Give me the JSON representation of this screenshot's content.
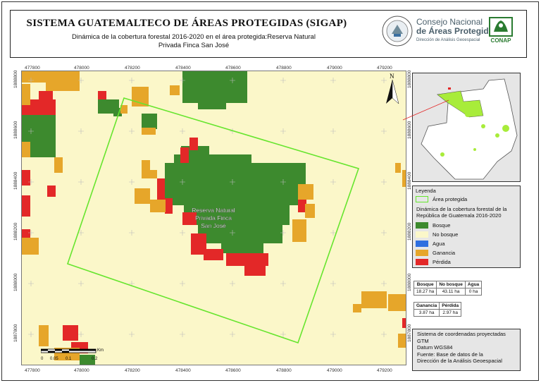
{
  "header": {
    "title": "SISTEMA GUATEMALTECO DE ÁREAS PROTEGIDAS  (SIGAP)",
    "subtitle": "Dinámica de la cobertura forestal 2016-2020 en el área protegida:Reserva Natural Privada Finca San José",
    "conap_line1": "Consejo Nacional",
    "conap_line2": "de Áreas Protegidas",
    "conap_line3": "Dirección de Análisis Geoespacial",
    "conap_logo_text": "CONAP"
  },
  "map": {
    "x_ticks": [
      "477800",
      "478000",
      "478200",
      "478400",
      "478600",
      "478800",
      "479000",
      "479200"
    ],
    "y_ticks": [
      "1888800",
      "1888600",
      "1888400",
      "1888200",
      "1888000",
      "1887800"
    ],
    "north_label": "N",
    "area_label": [
      "Reserva Natural",
      "Privada Finca",
      "San José"
    ],
    "colors": {
      "bosque": "#3d8a2e",
      "no_bosque": "#fbf7c9",
      "agua": "#2f6fe0",
      "ganancia": "#e6a62a",
      "perdida": "#e32828",
      "area_protegida": "#66e52e"
    }
  },
  "scale_bar": {
    "unit": "Km",
    "labels": [
      "0",
      "0.05",
      "0.1",
      "0.2"
    ]
  },
  "legend": {
    "title": "Leyenda",
    "area_protegida": "Área protegida",
    "description": "Dinámica de la cobertura forestal de la República de Guatemala 2016-2020",
    "items": [
      "Bosque",
      "No bosque",
      "Agua",
      "Ganancia",
      "Pérdida"
    ]
  },
  "stats1": {
    "headers": [
      "Bosque",
      "No bosque",
      "Agua"
    ],
    "values": [
      "18.27 ha",
      "43.11 ha",
      "0 ha"
    ]
  },
  "stats2": {
    "headers": [
      "Ganancia",
      "Pérdida"
    ],
    "values": [
      "3.87 ha",
      "2.97 ha"
    ]
  },
  "source": {
    "lines": [
      "Sistema de coordenadas proyectadas",
      "GTM",
      "Datum WGS84",
      "Fuente: Base de datos de la",
      "Dirección de la Análisis Geoespacial"
    ]
  }
}
